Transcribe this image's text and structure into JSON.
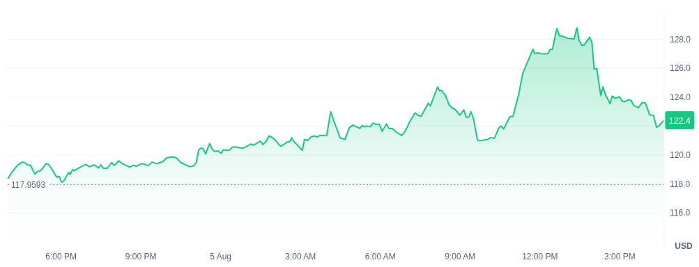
{
  "chart_data": {
    "type": "area",
    "ylabel": "USD",
    "x": [
      "--08-04T16:00",
      "--08-04T16:08",
      "--08-04T16:21",
      "--08-04T16:32",
      "--08-04T16:37",
      "--08-04T16:44",
      "--08-04T16:51",
      "--08-04T17:01",
      "--08-04T17:06",
      "--08-04T17:14",
      "--08-04T17:26",
      "--08-04T17:31",
      "--08-04T17:40",
      "--08-04T17:50",
      "--08-04T17:56",
      "--08-04T18:01",
      "--08-04T18:06",
      "--08-04T18:17",
      "--08-04T18:20",
      "--08-04T18:26",
      "--08-04T18:30",
      "--08-04T18:43",
      "--08-04T18:56",
      "--08-04T19:04",
      "--08-04T19:14",
      "--08-04T19:25",
      "--08-04T19:30",
      "--08-04T19:35",
      "--08-04T19:44",
      "--08-04T19:54",
      "--08-04T19:59",
      "--08-04T20:03",
      "--08-04T20:10",
      "--08-04T20:17",
      "--08-04T20:35",
      "--08-04T20:43",
      "--08-04T20:50",
      "--08-04T20:56",
      "--08-04T21:04",
      "--08-04T21:17",
      "--08-04T21:25",
      "--08-04T21:36",
      "--08-04T21:49",
      "--08-04T21:58",
      "--08-04T22:10",
      "--08-04T22:20",
      "--08-04T22:30",
      "--08-04T22:41",
      "--08-04T22:50",
      "--08-04T22:59",
      "--08-04T23:05",
      "--08-04T23:10",
      "--08-04T23:15",
      "--08-04T23:20",
      "--08-04T23:26",
      "--08-04T23:35",
      "--08-04T23:41",
      "--08-04T23:46",
      "--08-04T23:54",
      "--08-05T00:01",
      "--08-05T00:06",
      "--08-05T00:14",
      "--08-05T00:21",
      "--08-05T00:26",
      "--08-05T00:36",
      "--08-05T00:49",
      "--08-05T00:57",
      "--08-05T01:08",
      "--08-05T01:14",
      "--08-05T01:23",
      "--08-05T01:30",
      "--08-05T01:35",
      "--08-05T01:42",
      "--08-05T01:49",
      "--08-05T01:57",
      "--08-05T02:05",
      "--08-05T02:15",
      "--08-05T02:24",
      "--08-05T02:31",
      "--08-05T02:36",
      "--08-05T02:40",
      "--08-05T02:44",
      "--08-05T02:52",
      "--08-05T02:58",
      "--08-05T03:04",
      "--08-05T03:09",
      "--08-05T03:16",
      "--08-05T03:24",
      "--08-05T03:32",
      "--08-05T03:37",
      "--08-05T03:44",
      "--08-05T03:53",
      "--08-05T03:59",
      "--08-05T04:08",
      "--08-05T04:16",
      "--08-05T04:24",
      "--08-05T04:29",
      "--08-05T04:40",
      "--08-05T04:50",
      "--08-05T04:58",
      "--08-05T05:06",
      "--08-05T05:14",
      "--08-05T05:19",
      "--08-05T05:24",
      "--08-05T05:29",
      "--08-05T05:37",
      "--08-05T05:43",
      "--08-05T05:50",
      "--08-05T05:58",
      "--08-05T06:04",
      "--08-05T06:14",
      "--08-05T06:19",
      "--08-05T06:27",
      "--08-05T06:37",
      "--08-05T06:48",
      "--08-05T06:56",
      "--08-05T07:06",
      "--08-05T07:18",
      "--08-05T07:24",
      "--08-05T07:32",
      "--08-05T07:48",
      "--08-05T07:53",
      "--08-05T08:09",
      "--08-05T08:14",
      "--08-05T08:18",
      "--08-05T08:27",
      "--08-05T08:35",
      "--08-05T08:43",
      "--08-05T08:49",
      "--08-05T08:59",
      "--08-05T09:08",
      "--08-05T09:14",
      "--08-05T09:20",
      "--08-05T09:24",
      "--08-05T09:30",
      "--08-05T09:39",
      "--08-05T09:46",
      "--08-05T10:02",
      "--08-05T10:08",
      "--08-05T10:17",
      "--08-05T10:28",
      "--08-05T10:33",
      "--08-05T10:38",
      "--08-05T10:46",
      "--08-05T10:52",
      "--08-05T10:59",
      "--08-05T11:12",
      "--08-05T11:21",
      "--08-05T11:44",
      "--08-05T11:48",
      "--08-05T11:57",
      "--08-05T12:05",
      "--08-05T12:18",
      "--08-05T12:23",
      "--08-05T12:28",
      "--08-05T12:38",
      "--08-05T12:44",
      "--08-05T12:54",
      "--08-05T13:01",
      "--08-05T13:17",
      "--08-05T13:23",
      "--08-05T13:28",
      "--08-05T13:34",
      "--08-05T13:39",
      "--08-05T13:52",
      "--08-05T13:57",
      "--08-05T14:02",
      "--08-05T14:08",
      "--08-05T14:17",
      "--08-05T14:22",
      "--08-05T14:28",
      "--08-05T14:38",
      "--08-05T14:43",
      "--08-05T14:50",
      "--08-05T14:59",
      "--08-05T15:05",
      "--08-05T15:10",
      "--08-05T15:20",
      "--08-05T15:26",
      "--08-05T15:31",
      "--08-05T15:42",
      "--08-05T15:50",
      "--08-05T15:58",
      "--08-05T16:07",
      "--08-05T16:16",
      "--08-05T16:23",
      "--08-05T16:29",
      "--08-05T16:39"
    ],
    "series": [
      {
        "color": "#16c784",
        "values": [
          118.36,
          118.76,
          119.27,
          119.51,
          119.48,
          119.32,
          119.3,
          118.68,
          118.84,
          118.92,
          119.4,
          119.37,
          119.0,
          118.47,
          118.52,
          118.12,
          118.2,
          118.79,
          118.65,
          119.0,
          118.92,
          119.16,
          119.35,
          119.19,
          119.32,
          119.11,
          119.32,
          119.08,
          119.08,
          119.48,
          119.29,
          119.35,
          119.6,
          119.43,
          119.16,
          119.29,
          119.21,
          119.33,
          119.4,
          119.27,
          119.51,
          119.4,
          119.53,
          119.8,
          119.88,
          119.8,
          119.48,
          119.32,
          119.19,
          119.24,
          119.48,
          120.32,
          120.48,
          120.44,
          120.07,
          120.8,
          120.39,
          120.25,
          120.28,
          120.12,
          120.36,
          120.32,
          120.36,
          120.55,
          120.55,
          120.47,
          120.57,
          120.76,
          120.68,
          120.84,
          120.96,
          120.72,
          120.92,
          121.32,
          121.2,
          120.96,
          120.6,
          120.76,
          120.92,
          120.92,
          121.2,
          120.95,
          120.72,
          120.52,
          120.32,
          121.08,
          121.0,
          121.27,
          121.32,
          121.24,
          121.36,
          121.36,
          121.35,
          122.99,
          122.28,
          121.64,
          121.2,
          121.07,
          121.88,
          122.07,
          121.95,
          121.84,
          122.04,
          121.95,
          122.0,
          121.95,
          122.2,
          122.12,
          122.12,
          121.64,
          122.15,
          121.84,
          121.84,
          121.56,
          121.36,
          121.64,
          122.28,
          122.92,
          122.76,
          122.68,
          123.59,
          123.4,
          124.71,
          124.43,
          124.47,
          124.11,
          123.47,
          123.23,
          123.15,
          122.76,
          123.12,
          122.6,
          122.64,
          123.0,
          122.52,
          121.03,
          121.0,
          121.08,
          121.2,
          121.16,
          121.91,
          122.0,
          121.8,
          122.28,
          122.64,
          122.68,
          124.19,
          125.63,
          127.31,
          127.02,
          127.07,
          126.99,
          127.02,
          127.31,
          127.31,
          128.75,
          128.24,
          128.19,
          128.08,
          128.03,
          128.8,
          127.95,
          127.6,
          127.6,
          128.14,
          127.79,
          125.95,
          125.99,
          124.11,
          124.71,
          124.16,
          123.55,
          124.07,
          123.92,
          124.03,
          123.75,
          123.67,
          123.83,
          123.75,
          123.43,
          123.27,
          123.63,
          123.59,
          122.8,
          122.72,
          121.91,
          122.04,
          122.4
        ],
        "value_labels": [
          null,
          null,
          null,
          null,
          null,
          null,
          null,
          null,
          null,
          null,
          null,
          null,
          null,
          null,
          null,
          null,
          null,
          null,
          null,
          null,
          null,
          null,
          null,
          null,
          null,
          null,
          null,
          null,
          null,
          null,
          null,
          null,
          null,
          null,
          null,
          null,
          null,
          null,
          null,
          null,
          null,
          null,
          null,
          null,
          null,
          null,
          null,
          null,
          null,
          null,
          null,
          null,
          null,
          null,
          null,
          null,
          null,
          null,
          null,
          null,
          null,
          null,
          null,
          null,
          null,
          null,
          null,
          null,
          null,
          null,
          null,
          null,
          null,
          null,
          null,
          null,
          null,
          null,
          null,
          null,
          null,
          null,
          null,
          null,
          null,
          null,
          null,
          null,
          null,
          null,
          null,
          null,
          null,
          null,
          null,
          null,
          null,
          null,
          null,
          null,
          null,
          null,
          null,
          null,
          null,
          null,
          null,
          null,
          null,
          null,
          null,
          null,
          null,
          null,
          null,
          null,
          null,
          null,
          null,
          null,
          null,
          null,
          null,
          null,
          null,
          null,
          null,
          null,
          null,
          null,
          null,
          null,
          null,
          null,
          null,
          null,
          null,
          null,
          null,
          null,
          null,
          null,
          null,
          null,
          null,
          null,
          null,
          null,
          null,
          null,
          null,
          null,
          null,
          null,
          null,
          null,
          null,
          null,
          null,
          null,
          null,
          null,
          null,
          null,
          null,
          null,
          null,
          null,
          null,
          null,
          null,
          null,
          null,
          null,
          null,
          null,
          null,
          null,
          null,
          null,
          null,
          null,
          null,
          null,
          null,
          null,
          null,
          "122.4"
        ]
      }
    ],
    "xlim": [
      "--08-04T15:58",
      "--08-05T16:40"
    ],
    "xticks": [
      {
        "value": "--08-04T18:00",
        "label": "6:00 PM"
      },
      {
        "value": "--08-04T21:00",
        "label": "9:00 PM"
      },
      {
        "value": "--08-05T00:00",
        "label": "5 Aug"
      },
      {
        "value": "--08-05T03:00",
        "label": "3:00 AM"
      },
      {
        "value": "--08-05T06:00",
        "label": "6:00 AM"
      },
      {
        "value": "--08-05T09:00",
        "label": "9:00 AM"
      },
      {
        "value": "--08-05T12:00",
        "label": "12:00 PM"
      },
      {
        "value": "--08-05T15:00",
        "label": "3:00 PM"
      }
    ],
    "ylim": [
      113.6,
      130.0
    ],
    "yticks": [
      {
        "value": 116,
        "label": "116.0"
      },
      {
        "value": 118,
        "label": "118.0"
      },
      {
        "value": 120,
        "label": "120.0"
      },
      {
        "value": 122,
        "label": null
      },
      {
        "value": 124,
        "label": "124.0"
      },
      {
        "value": 126,
        "label": "126.0"
      },
      {
        "value": 128,
        "label": "128.0"
      }
    ],
    "grid": "y",
    "ref_lines": [
      {
        "axis": "y",
        "value": 117.9593,
        "label": "117.9593",
        "line_style": "dotted",
        "color": "#808a9d"
      }
    ]
  }
}
